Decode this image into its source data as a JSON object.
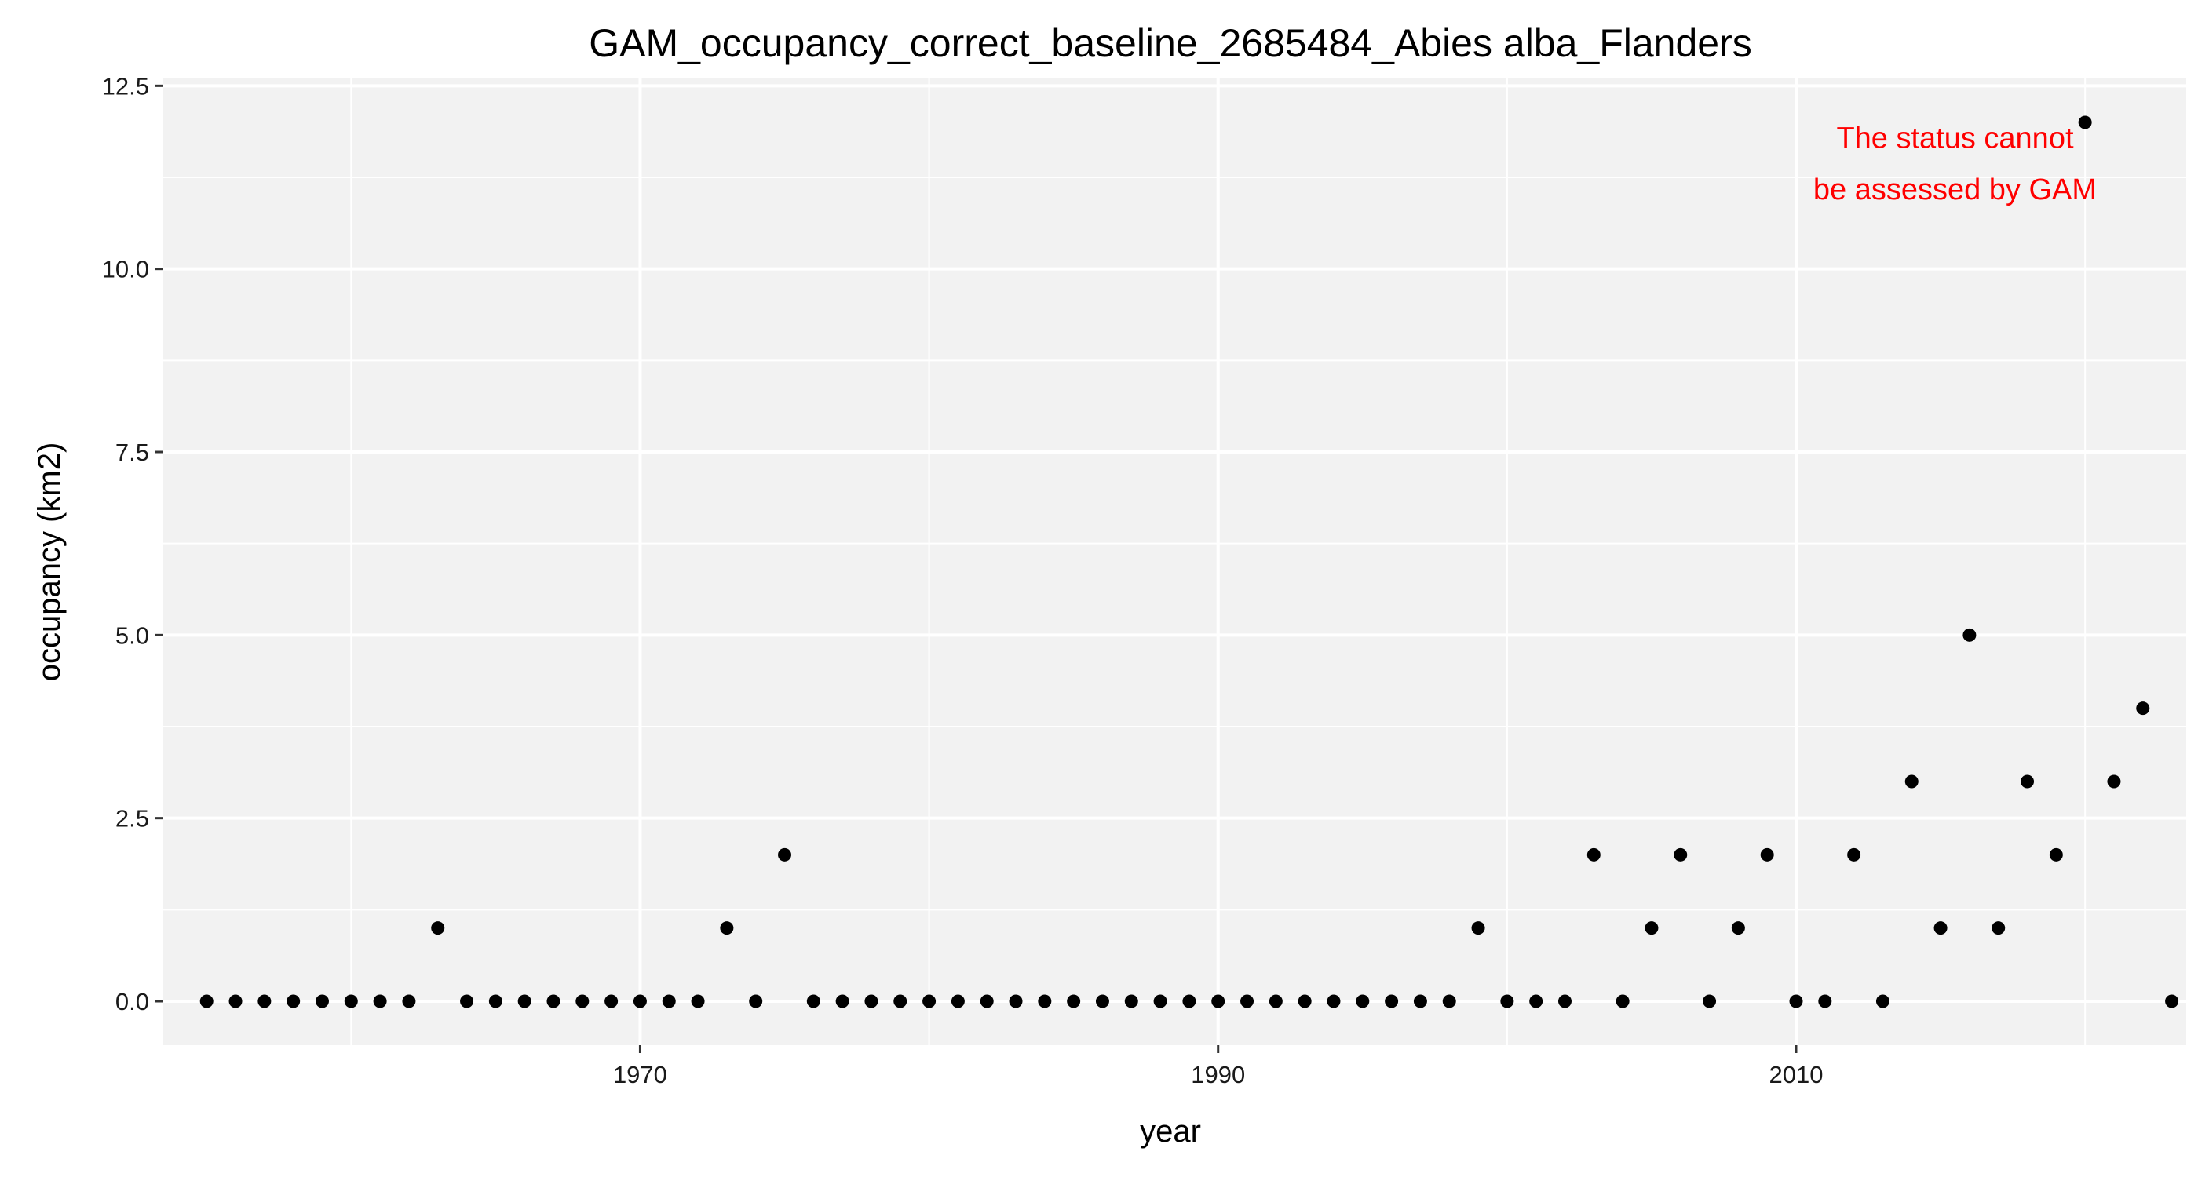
{
  "chart_data": {
    "type": "scatter",
    "title": "GAM_occupancy_correct_baseline_2685484_Abies alba_Flanders",
    "xlabel": "year",
    "ylabel": "occupancy (km2)",
    "xlim": [
      1953.5,
      2023.5
    ],
    "ylim": [
      -0.6,
      12.6
    ],
    "x_ticks": [
      1970,
      1990,
      2010
    ],
    "x_tick_labels": [
      "1970",
      "1990",
      "2010"
    ],
    "x_minor_ticks": [
      1960,
      1980,
      2000,
      2020
    ],
    "y_ticks": [
      0,
      2.5,
      5,
      7.5,
      10,
      12.5
    ],
    "y_tick_labels": [
      "0.0",
      "2.5",
      "5.0",
      "7.5",
      "10.0",
      "12.5"
    ],
    "y_minor_ticks": [
      1.25,
      3.75,
      6.25,
      8.75,
      11.25
    ],
    "grid": true,
    "panel_background": "#f2f2f2",
    "gridline_color": "#ffffff",
    "point_color": "#000000",
    "series": [
      {
        "x": [
          1955,
          1956,
          1957,
          1958,
          1959,
          1960,
          1961,
          1962,
          1963,
          1964,
          1965,
          1966,
          1967,
          1968,
          1969,
          1970,
          1971,
          1972,
          1973,
          1974,
          1975,
          1976,
          1977,
          1978,
          1979,
          1980,
          1981,
          1982,
          1983,
          1984,
          1985,
          1986,
          1987,
          1988,
          1989,
          1990,
          1991,
          1992,
          1993,
          1994,
          1995,
          1996,
          1997,
          1998,
          1999,
          2000,
          2001,
          2002,
          2003,
          2004,
          2005,
          2006,
          2007,
          2008,
          2009,
          2010,
          2011,
          2012,
          2013,
          2014,
          2015,
          2016,
          2017,
          2018,
          2019,
          2020,
          2021,
          2022,
          2023
        ],
        "y": [
          0,
          0,
          0,
          0,
          0,
          0,
          0,
          0,
          1,
          0,
          0,
          0,
          0,
          0,
          0,
          0,
          0,
          0,
          1,
          0,
          2,
          0,
          0,
          0,
          0,
          0,
          0,
          0,
          0,
          0,
          0,
          0,
          0,
          0,
          0,
          0,
          0,
          0,
          0,
          0,
          0,
          0,
          0,
          0,
          1,
          0,
          0,
          0,
          2,
          0,
          1,
          2,
          0,
          1,
          2,
          0,
          0,
          2,
          0,
          3,
          1,
          5,
          1,
          3,
          2,
          12,
          3,
          4,
          0
        ]
      }
    ],
    "annotation": {
      "lines": [
        "The status cannot",
        "be assessed by GAM"
      ],
      "color": "#ff0000",
      "x": 2015.5,
      "y": 11.3
    }
  }
}
